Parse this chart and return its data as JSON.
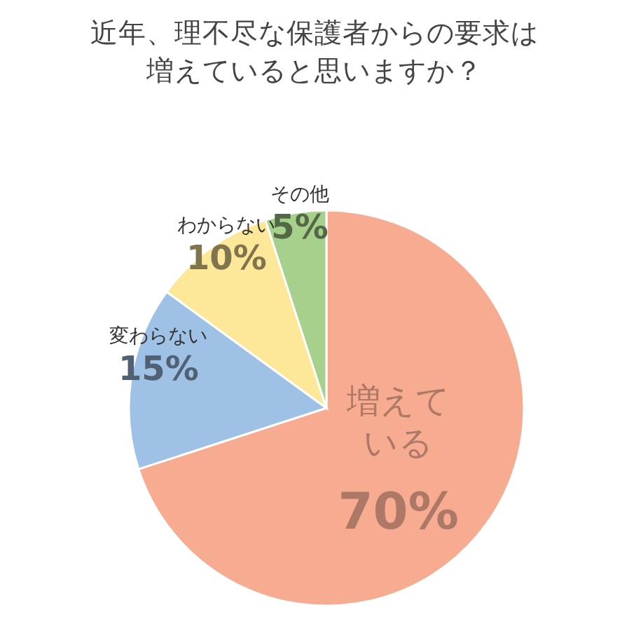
{
  "chart_data": {
    "type": "pie",
    "title": "近年、理不尽な保護者からの要求は増えていると思いますか？",
    "categories": [
      "増えている",
      "変わらない",
      "わからない",
      "その他"
    ],
    "values": [
      70,
      15,
      10,
      5
    ],
    "colors": [
      "#f7ab91",
      "#9fc1e6",
      "#fde89a",
      "#a8d08d"
    ],
    "value_labels": [
      "70%",
      "15%",
      "10%",
      "5%"
    ]
  }
}
